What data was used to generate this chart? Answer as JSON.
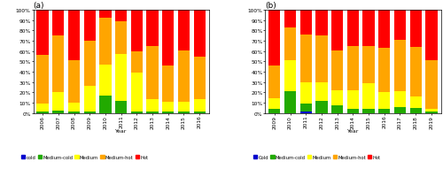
{
  "chart_a": {
    "title": "(a)",
    "years": [
      "2006",
      "2007",
      "2008",
      "2009",
      "2010",
      "2011",
      "2012",
      "2013",
      "2014",
      "2015",
      "2016"
    ],
    "cold": [
      0,
      0,
      0,
      0,
      0,
      0,
      0,
      0,
      0,
      0,
      0
    ],
    "medium_cold": [
      1,
      2,
      1,
      1,
      17,
      12,
      1,
      1,
      1,
      1,
      1
    ],
    "medium": [
      8,
      18,
      9,
      25,
      30,
      45,
      38,
      12,
      10,
      10,
      12
    ],
    "medium_hot": [
      47,
      55,
      41,
      44,
      45,
      32,
      21,
      52,
      35,
      50,
      42
    ],
    "hot": [
      44,
      25,
      49,
      30,
      8,
      11,
      40,
      35,
      54,
      39,
      45
    ]
  },
  "chart_b": {
    "title": "(b)",
    "years": [
      "2009",
      "2010",
      "2011",
      "2012",
      "2013",
      "2014",
      "2015",
      "2016",
      "2017",
      "2018",
      "2019"
    ],
    "cold": [
      0,
      0,
      1,
      0,
      0,
      0,
      0,
      0,
      0,
      0,
      0
    ],
    "medium_cold": [
      4,
      21,
      8,
      12,
      7,
      4,
      4,
      4,
      6,
      5,
      1
    ],
    "medium": [
      10,
      30,
      21,
      18,
      15,
      18,
      25,
      16,
      15,
      11,
      3
    ],
    "medium_hot": [
      32,
      32,
      46,
      45,
      39,
      43,
      36,
      43,
      50,
      48,
      47
    ],
    "hot": [
      54,
      17,
      24,
      25,
      39,
      35,
      35,
      37,
      29,
      36,
      49
    ]
  },
  "colors": {
    "cold": "#0000CD",
    "medium_cold": "#22AA00",
    "medium": "#FFFF00",
    "medium_hot": "#FFA500",
    "hot": "#FF0000"
  },
  "legend_labels_a": [
    "cold",
    "Medium-cold",
    "Medium",
    "Medium-hot",
    "Hot"
  ],
  "legend_labels_b": [
    "Cold",
    "Medium-cold",
    "Medium",
    "Medium-hot",
    "Hot"
  ],
  "yticks": [
    0,
    10,
    20,
    30,
    40,
    50,
    60,
    70,
    80,
    90,
    100
  ],
  "yticklabels": [
    "0%",
    "10%",
    "20%",
    "30%",
    "40%",
    "50%",
    "60%",
    "70%",
    "80%",
    "90%",
    "100%"
  ]
}
